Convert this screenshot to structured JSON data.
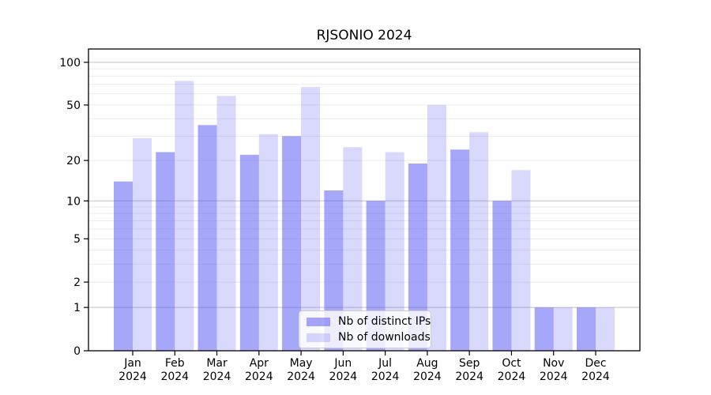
{
  "title": "RJSONIO 2024",
  "chart_data": {
    "type": "bar",
    "title": "RJSONIO 2024",
    "categories": [
      "Jan",
      "Feb",
      "Mar",
      "Apr",
      "May",
      "Jun",
      "Jul",
      "Aug",
      "Sep",
      "Oct",
      "Nov",
      "Dec"
    ],
    "year_label": "2024",
    "series": [
      {
        "name": "Nb of distinct IPs",
        "color": "rgba(80,80,245,0.5)",
        "values": [
          14,
          23,
          36,
          22,
          30,
          12,
          10,
          19,
          24,
          10,
          1,
          1
        ]
      },
      {
        "name": "Nb of downloads",
        "color": "rgba(80,80,245,0.22)",
        "values": [
          29,
          74,
          58,
          31,
          67,
          25,
          23,
          50,
          32,
          17,
          1,
          1
        ]
      }
    ],
    "yscale": "log1p",
    "ylim": [
      0,
      124
    ],
    "yticks": [
      0,
      1,
      2,
      5,
      10,
      20,
      50,
      100
    ],
    "ytick_labels": [
      "0",
      "1",
      "2",
      "5",
      "10",
      "20",
      "50",
      "100"
    ],
    "major_grid": [
      1,
      10,
      100
    ],
    "minor_grid": [
      2,
      3,
      4,
      5,
      6,
      7,
      8,
      9,
      20,
      30,
      40,
      50,
      60,
      70,
      80,
      90
    ],
    "grid_major_color": "#c2c2c2",
    "grid_minor_color": "#ebebeb",
    "frame_color": "#000000",
    "legend_position": "lower center",
    "xlabel": "",
    "ylabel": ""
  }
}
